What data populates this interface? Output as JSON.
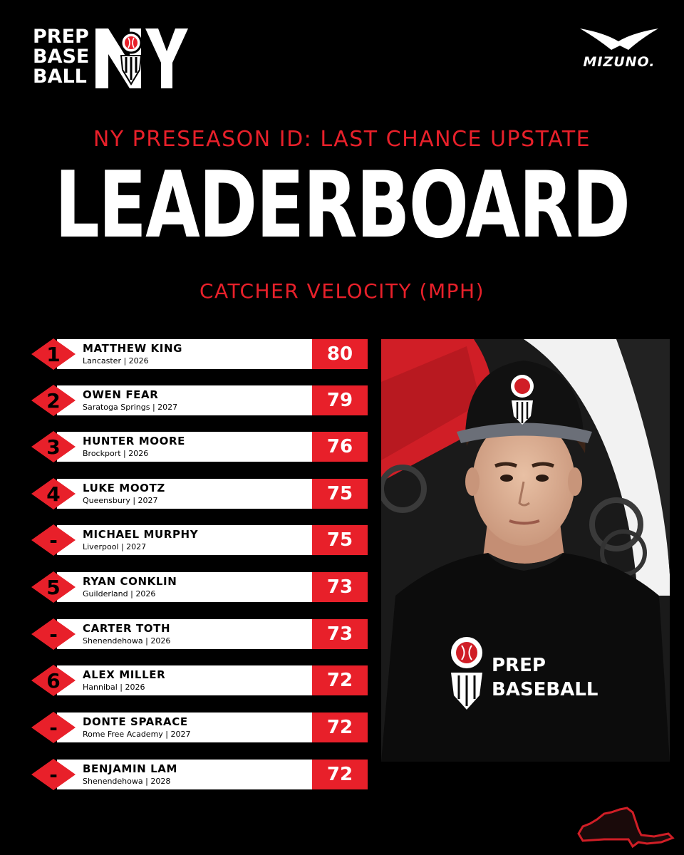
{
  "logo": {
    "line1": "PREP",
    "line2": "BASE",
    "line3": "BALL",
    "region": "NY"
  },
  "brand": {
    "name": "MIZUNO."
  },
  "header": {
    "event": "NY PRESEASON ID: LAST CHANCE UPSTATE",
    "title": "LEADERBOARD",
    "subtitle": "CATCHER VELOCITY (MPH)"
  },
  "leaders": [
    {
      "rank": "1",
      "name": "MATTHEW KING",
      "meta": "Lancaster | 2026",
      "value": "80"
    },
    {
      "rank": "2",
      "name": "OWEN FEAR",
      "meta": "Saratoga Springs | 2027",
      "value": "79"
    },
    {
      "rank": "3",
      "name": "HUNTER MOORE",
      "meta": "Brockport | 2026",
      "value": "76"
    },
    {
      "rank": "4",
      "name": "LUKE MOOTZ",
      "meta": "Queensbury | 2027",
      "value": "75"
    },
    {
      "rank": "-",
      "name": "MICHAEL MURPHY",
      "meta": "Liverpool | 2027",
      "value": "75"
    },
    {
      "rank": "5",
      "name": "RYAN CONKLIN",
      "meta": "Guilderland | 2026",
      "value": "73"
    },
    {
      "rank": "-",
      "name": "CARTER TOTH",
      "meta": "Shenendehowa | 2026",
      "value": "73"
    },
    {
      "rank": "6",
      "name": "ALEX MILLER",
      "meta": "Hannibal | 2026",
      "value": "72"
    },
    {
      "rank": "-",
      "name": "DONTE SPARACE",
      "meta": "Rome Free Academy | 2027",
      "value": "72"
    },
    {
      "rank": "-",
      "name": "BENJAMIN LAM",
      "meta": "Shenendehowa | 2028",
      "value": "72"
    }
  ],
  "photo": {
    "shirt_line1": "PREP",
    "shirt_line2": "BASEBALL",
    "backdrop_text": "PREP BASEBALL",
    "backdrop_brand": "MIZUNO"
  },
  "colors": {
    "accent": "#e8202a",
    "background": "#000000",
    "bar": "#ffffff"
  }
}
